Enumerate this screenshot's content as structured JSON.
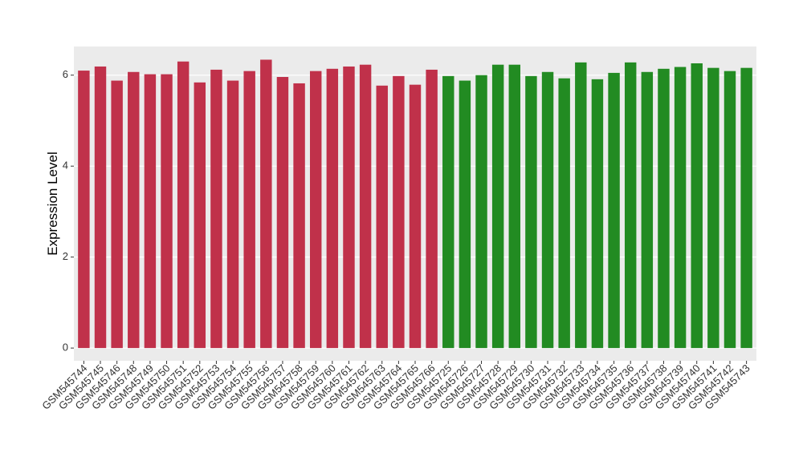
{
  "chart_data": {
    "type": "bar",
    "y_label": "Expression Level",
    "categories": [
      "GSM545744",
      "GSM545745",
      "GSM545746",
      "GSM545748",
      "GSM545749",
      "GSM545750",
      "GSM545751",
      "GSM545752",
      "GSM545753",
      "GSM545754",
      "GSM545755",
      "GSM545756",
      "GSM545757",
      "GSM545758",
      "GSM545759",
      "GSM545760",
      "GSM545761",
      "GSM545762",
      "GSM545763",
      "GSM545764",
      "GSM545765",
      "GSM545766",
      "GSM545725",
      "GSM545726",
      "GSM545727",
      "GSM545728",
      "GSM545729",
      "GSM545730",
      "GSM545731",
      "GSM545732",
      "GSM545733",
      "GSM545734",
      "GSM545735",
      "GSM545736",
      "GSM545737",
      "GSM545738",
      "GSM545739",
      "GSM545740",
      "GSM545741",
      "GSM545742",
      "GSM545743"
    ],
    "values": [
      6.1,
      6.19,
      5.88,
      6.07,
      6.02,
      6.02,
      6.3,
      5.84,
      6.12,
      5.88,
      6.09,
      6.34,
      5.96,
      5.82,
      6.09,
      6.14,
      6.19,
      6.23,
      5.77,
      5.98,
      5.79,
      6.12,
      5.98,
      5.88,
      6.0,
      6.23,
      6.23,
      5.98,
      6.07,
      5.93,
      6.28,
      5.91,
      6.05,
      6.28,
      6.07,
      6.14,
      6.18,
      6.26,
      6.16,
      6.09,
      6.16
    ],
    "colors": [
      "#c0314a",
      "#c0314a",
      "#c0314a",
      "#c0314a",
      "#c0314a",
      "#c0314a",
      "#c0314a",
      "#c0314a",
      "#c0314a",
      "#c0314a",
      "#c0314a",
      "#c0314a",
      "#c0314a",
      "#c0314a",
      "#c0314a",
      "#c0314a",
      "#c0314a",
      "#c0314a",
      "#c0314a",
      "#c0314a",
      "#c0314a",
      "#c0314a",
      "#228b22",
      "#228b22",
      "#228b22",
      "#228b22",
      "#228b22",
      "#228b22",
      "#228b22",
      "#228b22",
      "#228b22",
      "#228b22",
      "#228b22",
      "#228b22",
      "#228b22",
      "#228b22",
      "#228b22",
      "#228b22",
      "#228b22",
      "#228b22",
      "#228b22"
    ],
    "ylim": [
      -0.28,
      6.63
    ],
    "yticks": [
      0,
      2,
      4,
      6
    ],
    "grid": true
  }
}
